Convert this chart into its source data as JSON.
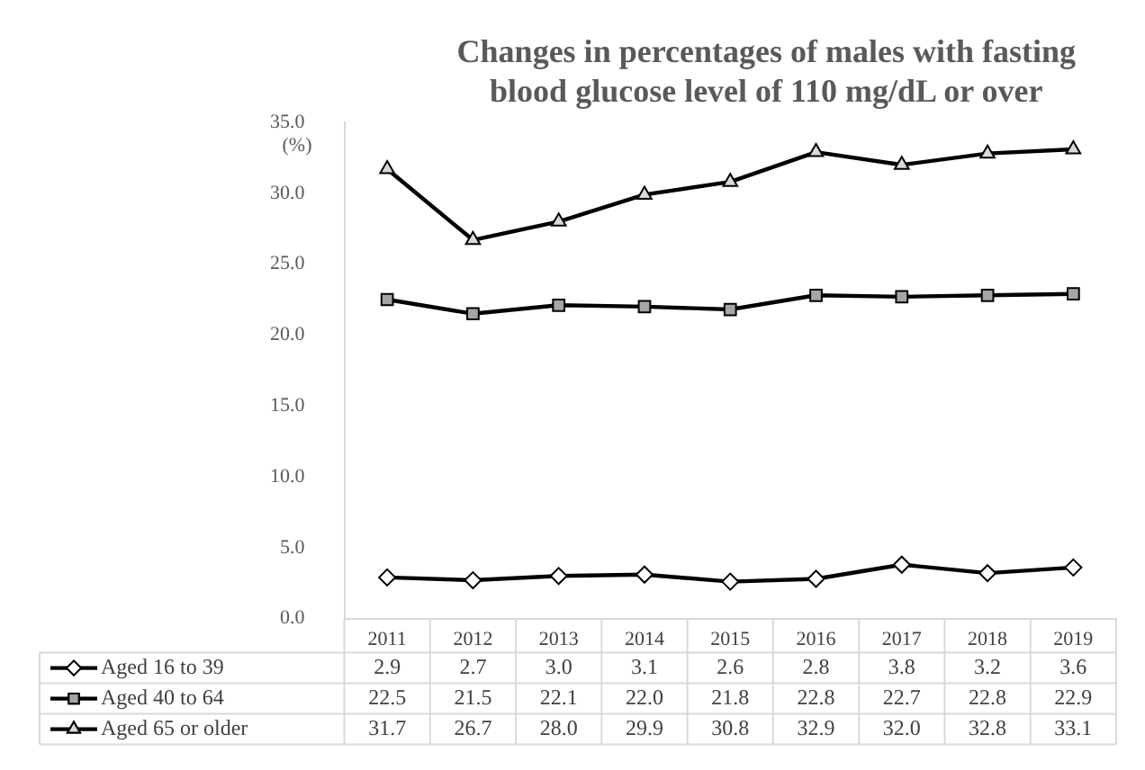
{
  "chart_data": {
    "type": "line",
    "title": "Changes in percentages of males with fasting\nblood glucose level of 110 mg/dL or over",
    "ylabel": "(%)",
    "categories": [
      "2011",
      "2012",
      "2013",
      "2014",
      "2015",
      "2016",
      "2017",
      "2018",
      "2019"
    ],
    "series": [
      {
        "name": "Aged 16 to 39",
        "color": "#000000",
        "marker": "diamond",
        "values": [
          2.9,
          2.7,
          3.0,
          3.1,
          2.6,
          2.8,
          3.8,
          3.2,
          3.6
        ],
        "value_labels": [
          "2.9",
          "2.7",
          "3.0",
          "3.1",
          "2.6",
          "2.8",
          "3.8",
          "3.2",
          "3.6"
        ]
      },
      {
        "name": "Aged 40 to 64",
        "color": "#000000",
        "marker": "square",
        "values": [
          22.5,
          21.5,
          22.1,
          22.0,
          21.8,
          22.8,
          22.7,
          22.8,
          22.9
        ],
        "value_labels": [
          "22.5",
          "21.5",
          "22.1",
          "22.0",
          "21.8",
          "22.8",
          "22.7",
          "22.8",
          "22.9"
        ]
      },
      {
        "name": "Aged 65 or older",
        "color": "#000000",
        "marker": "triangle",
        "values": [
          31.7,
          26.7,
          28.0,
          29.9,
          30.8,
          32.9,
          32.0,
          32.8,
          33.1
        ],
        "value_labels": [
          "31.7",
          "26.7",
          "28.0",
          "29.9",
          "30.8",
          "32.9",
          "32.0",
          "32.8",
          "33.1"
        ]
      }
    ],
    "ylim": [
      0,
      35
    ],
    "yticks": [
      {
        "value": 0,
        "label": "0.0"
      },
      {
        "value": 5,
        "label": "5.0"
      },
      {
        "value": 10,
        "label": "10.0"
      },
      {
        "value": 15,
        "label": "15.0"
      },
      {
        "value": 20,
        "label": "20.0"
      },
      {
        "value": 25,
        "label": "25.0"
      },
      {
        "value": 30,
        "label": "30.0"
      },
      {
        "value": 35,
        "label": "35.0"
      }
    ],
    "grid": false,
    "legend": "bottom left",
    "line_style": "solid"
  }
}
